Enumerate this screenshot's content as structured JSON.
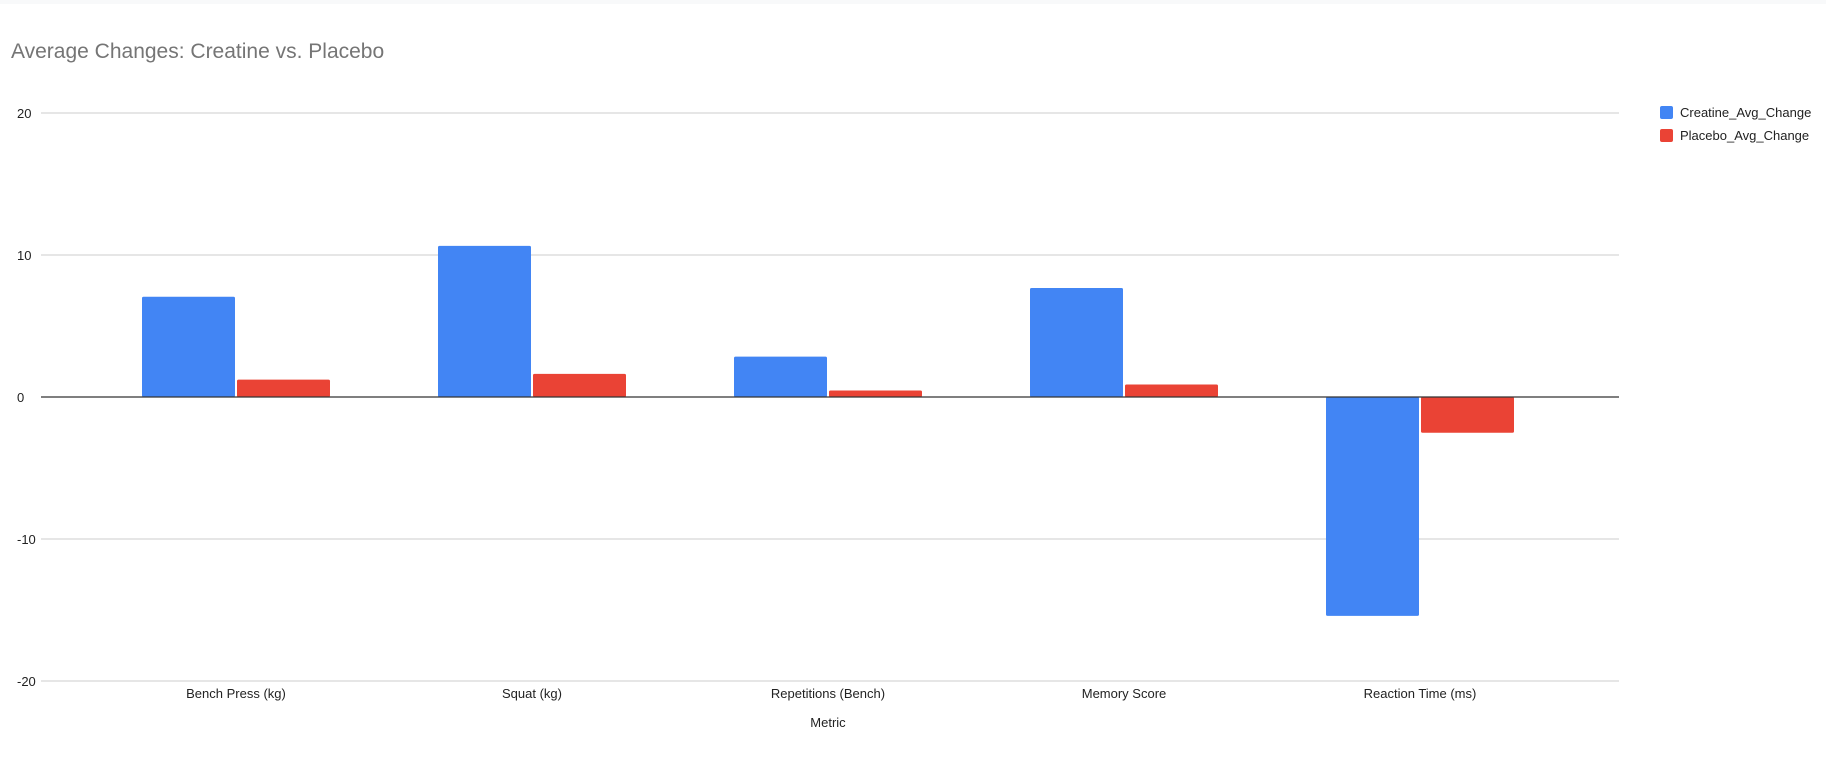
{
  "chart_data": {
    "type": "bar",
    "title": "Average Changes: Creatine vs. Placebo",
    "xlabel": "Metric",
    "ylabel": "",
    "categories": [
      "Bench Press (kg)",
      "Squat (kg)",
      "Repetitions (Bench)",
      "Memory Score",
      "Reaction Time (ms)"
    ],
    "series": [
      {
        "name": "Creatine_Avg_Change",
        "color": "#4285f4",
        "values": [
          7.06,
          10.64,
          2.84,
          7.68,
          -15.41
        ]
      },
      {
        "name": "Placebo_Avg_Change",
        "color": "#ea4335",
        "values": [
          1.22,
          1.63,
          0.46,
          0.88,
          -2.52
        ]
      }
    ],
    "ylim": [
      -20,
      20
    ],
    "yticks": [
      20,
      10,
      0,
      -10,
      -20
    ],
    "ytick_labels": [
      "20",
      "10",
      "0",
      "-10",
      "-20"
    ],
    "grid": true,
    "legend_position": "right"
  }
}
